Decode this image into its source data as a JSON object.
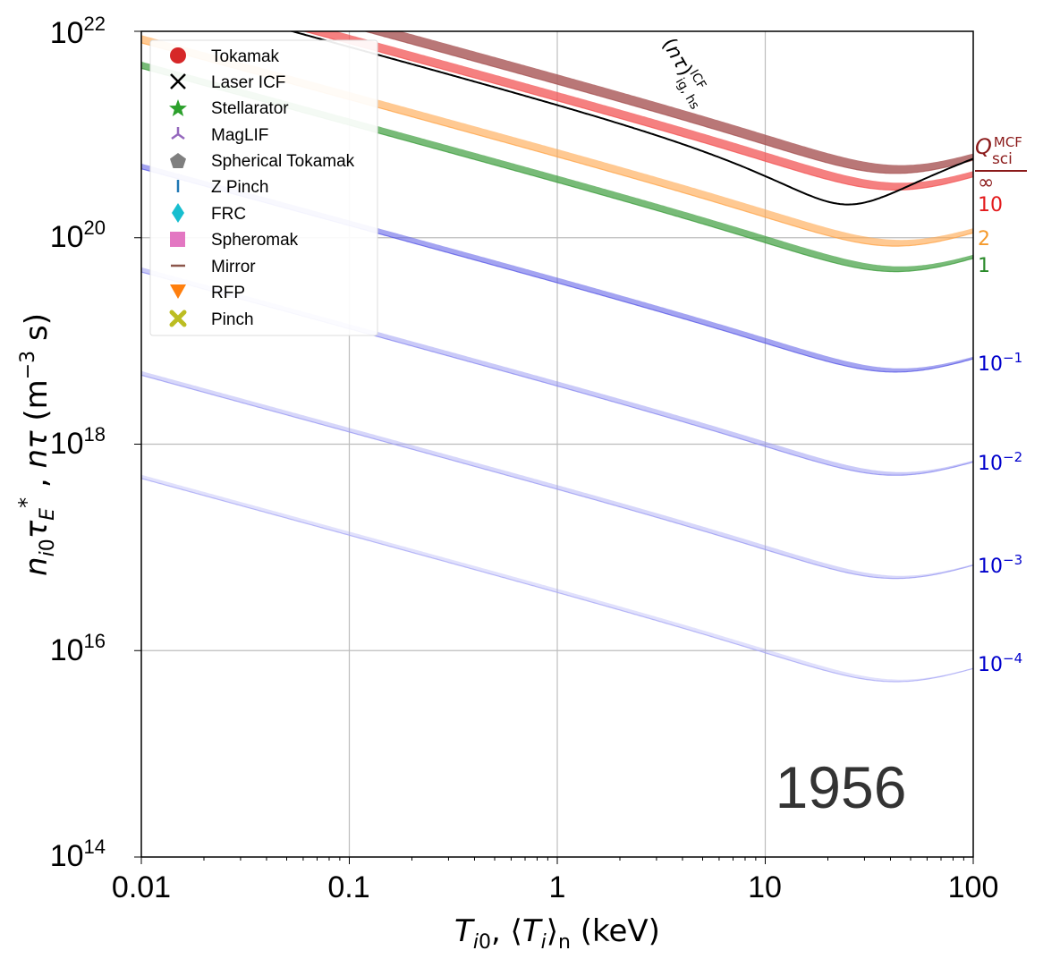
{
  "chart_data": {
    "type": "line",
    "title": "",
    "annotation_year": "1956",
    "xlabel": "T_{i0}, ⟨T_i⟩_n (keV)",
    "ylabel": "n_{i0} τ_E^*, nτ (m^-3 s)",
    "xscale": "log",
    "yscale": "log",
    "xlim": [
      0.01,
      100
    ],
    "ylim": [
      100000000000000.0,
      1e+22
    ],
    "x_ticks": [
      "0.01",
      "0.1",
      "1",
      "10",
      "100"
    ],
    "y_ticks": [
      {
        "base": "10",
        "exp": "14"
      },
      {
        "base": "10",
        "exp": "16"
      },
      {
        "base": "10",
        "exp": "18"
      },
      {
        "base": "10",
        "exp": "20"
      },
      {
        "base": "10",
        "exp": "22"
      }
    ],
    "grid": true,
    "legend_position": "top-left",
    "legend": [
      {
        "label": "Tokamak",
        "marker": "circle",
        "color": "#d62728"
      },
      {
        "label": "Laser ICF",
        "marker": "x",
        "color": "#000000"
      },
      {
        "label": "Stellarator",
        "marker": "star",
        "color": "#2ca02c"
      },
      {
        "label": "MagLIF",
        "marker": "tri",
        "color": "#9467bd"
      },
      {
        "label": "Spherical Tokamak",
        "marker": "pentagon",
        "color": "#7f7f7f"
      },
      {
        "label": "Z Pinch",
        "marker": "vline",
        "color": "#1f77b4"
      },
      {
        "label": "FRC",
        "marker": "diamond",
        "color": "#17becf"
      },
      {
        "label": "Spheromak",
        "marker": "square",
        "color": "#e377c2"
      },
      {
        "label": "Mirror",
        "marker": "hline",
        "color": "#8c564b"
      },
      {
        "label": "RFP",
        "marker": "triangle-down",
        "color": "#ff7f0e"
      },
      {
        "label": "Pinch",
        "marker": "thick-x",
        "color": "#bcbd22"
      }
    ],
    "q_header": "Q_sci^MCF",
    "q_series": [
      {
        "label": "∞",
        "color": "#8b1a1a",
        "band_color": "#a85555",
        "min_temp_keV": 45,
        "min_ntau": 4.2e+20,
        "band": 0.08,
        "band_opacity": 0.8
      },
      {
        "label": "10",
        "color": "#e31a1c",
        "band_color": "#f25555",
        "min_temp_keV": 45,
        "min_ntau": 2.9e+20,
        "band": 0.07,
        "band_opacity": 0.75
      },
      {
        "label": "2",
        "color": "#f59a2c",
        "band_color": "#ffa54a",
        "min_temp_keV": 45,
        "min_ntau": 8.3e+19,
        "band": 0.06,
        "band_opacity": 0.6
      },
      {
        "label": "1",
        "color": "#2a8a2a",
        "band_color": "#3f9e3f",
        "min_temp_keV": 45,
        "min_ntau": 4.7e+19,
        "band": 0.05,
        "band_opacity": 0.7
      },
      {
        "label": "10^-1",
        "base": "10",
        "exp": "−1",
        "color": "#0000cc",
        "band_color": "#5a5ae6",
        "min_temp_keV": 45,
        "min_ntau": 5e+18,
        "band": 0.035,
        "band_opacity": 0.55
      },
      {
        "label": "10^-2",
        "base": "10",
        "exp": "−2",
        "color": "#0000cc",
        "band_color": "#8a8af0",
        "min_temp_keV": 45,
        "min_ntau": 5e+17,
        "band": 0.03,
        "band_opacity": 0.45
      },
      {
        "label": "10^-3",
        "base": "10",
        "exp": "−3",
        "color": "#0000cc",
        "band_color": "#9a9af2",
        "min_temp_keV": 45,
        "min_ntau": 5e+16,
        "band": 0.025,
        "band_opacity": 0.4
      },
      {
        "label": "10^-4",
        "base": "10",
        "exp": "−4",
        "color": "#0000cc",
        "band_color": "#a8a8f5",
        "min_temp_keV": 45,
        "min_ntau": 5000000000000000.0,
        "band": 0.02,
        "band_opacity": 0.35
      }
    ],
    "ignition_curve": {
      "label": "(nτ)_{ig,hs}^{ICF}",
      "color": "#000000",
      "min_temp_keV": 25,
      "min_ntau": 2.1e+20
    }
  }
}
